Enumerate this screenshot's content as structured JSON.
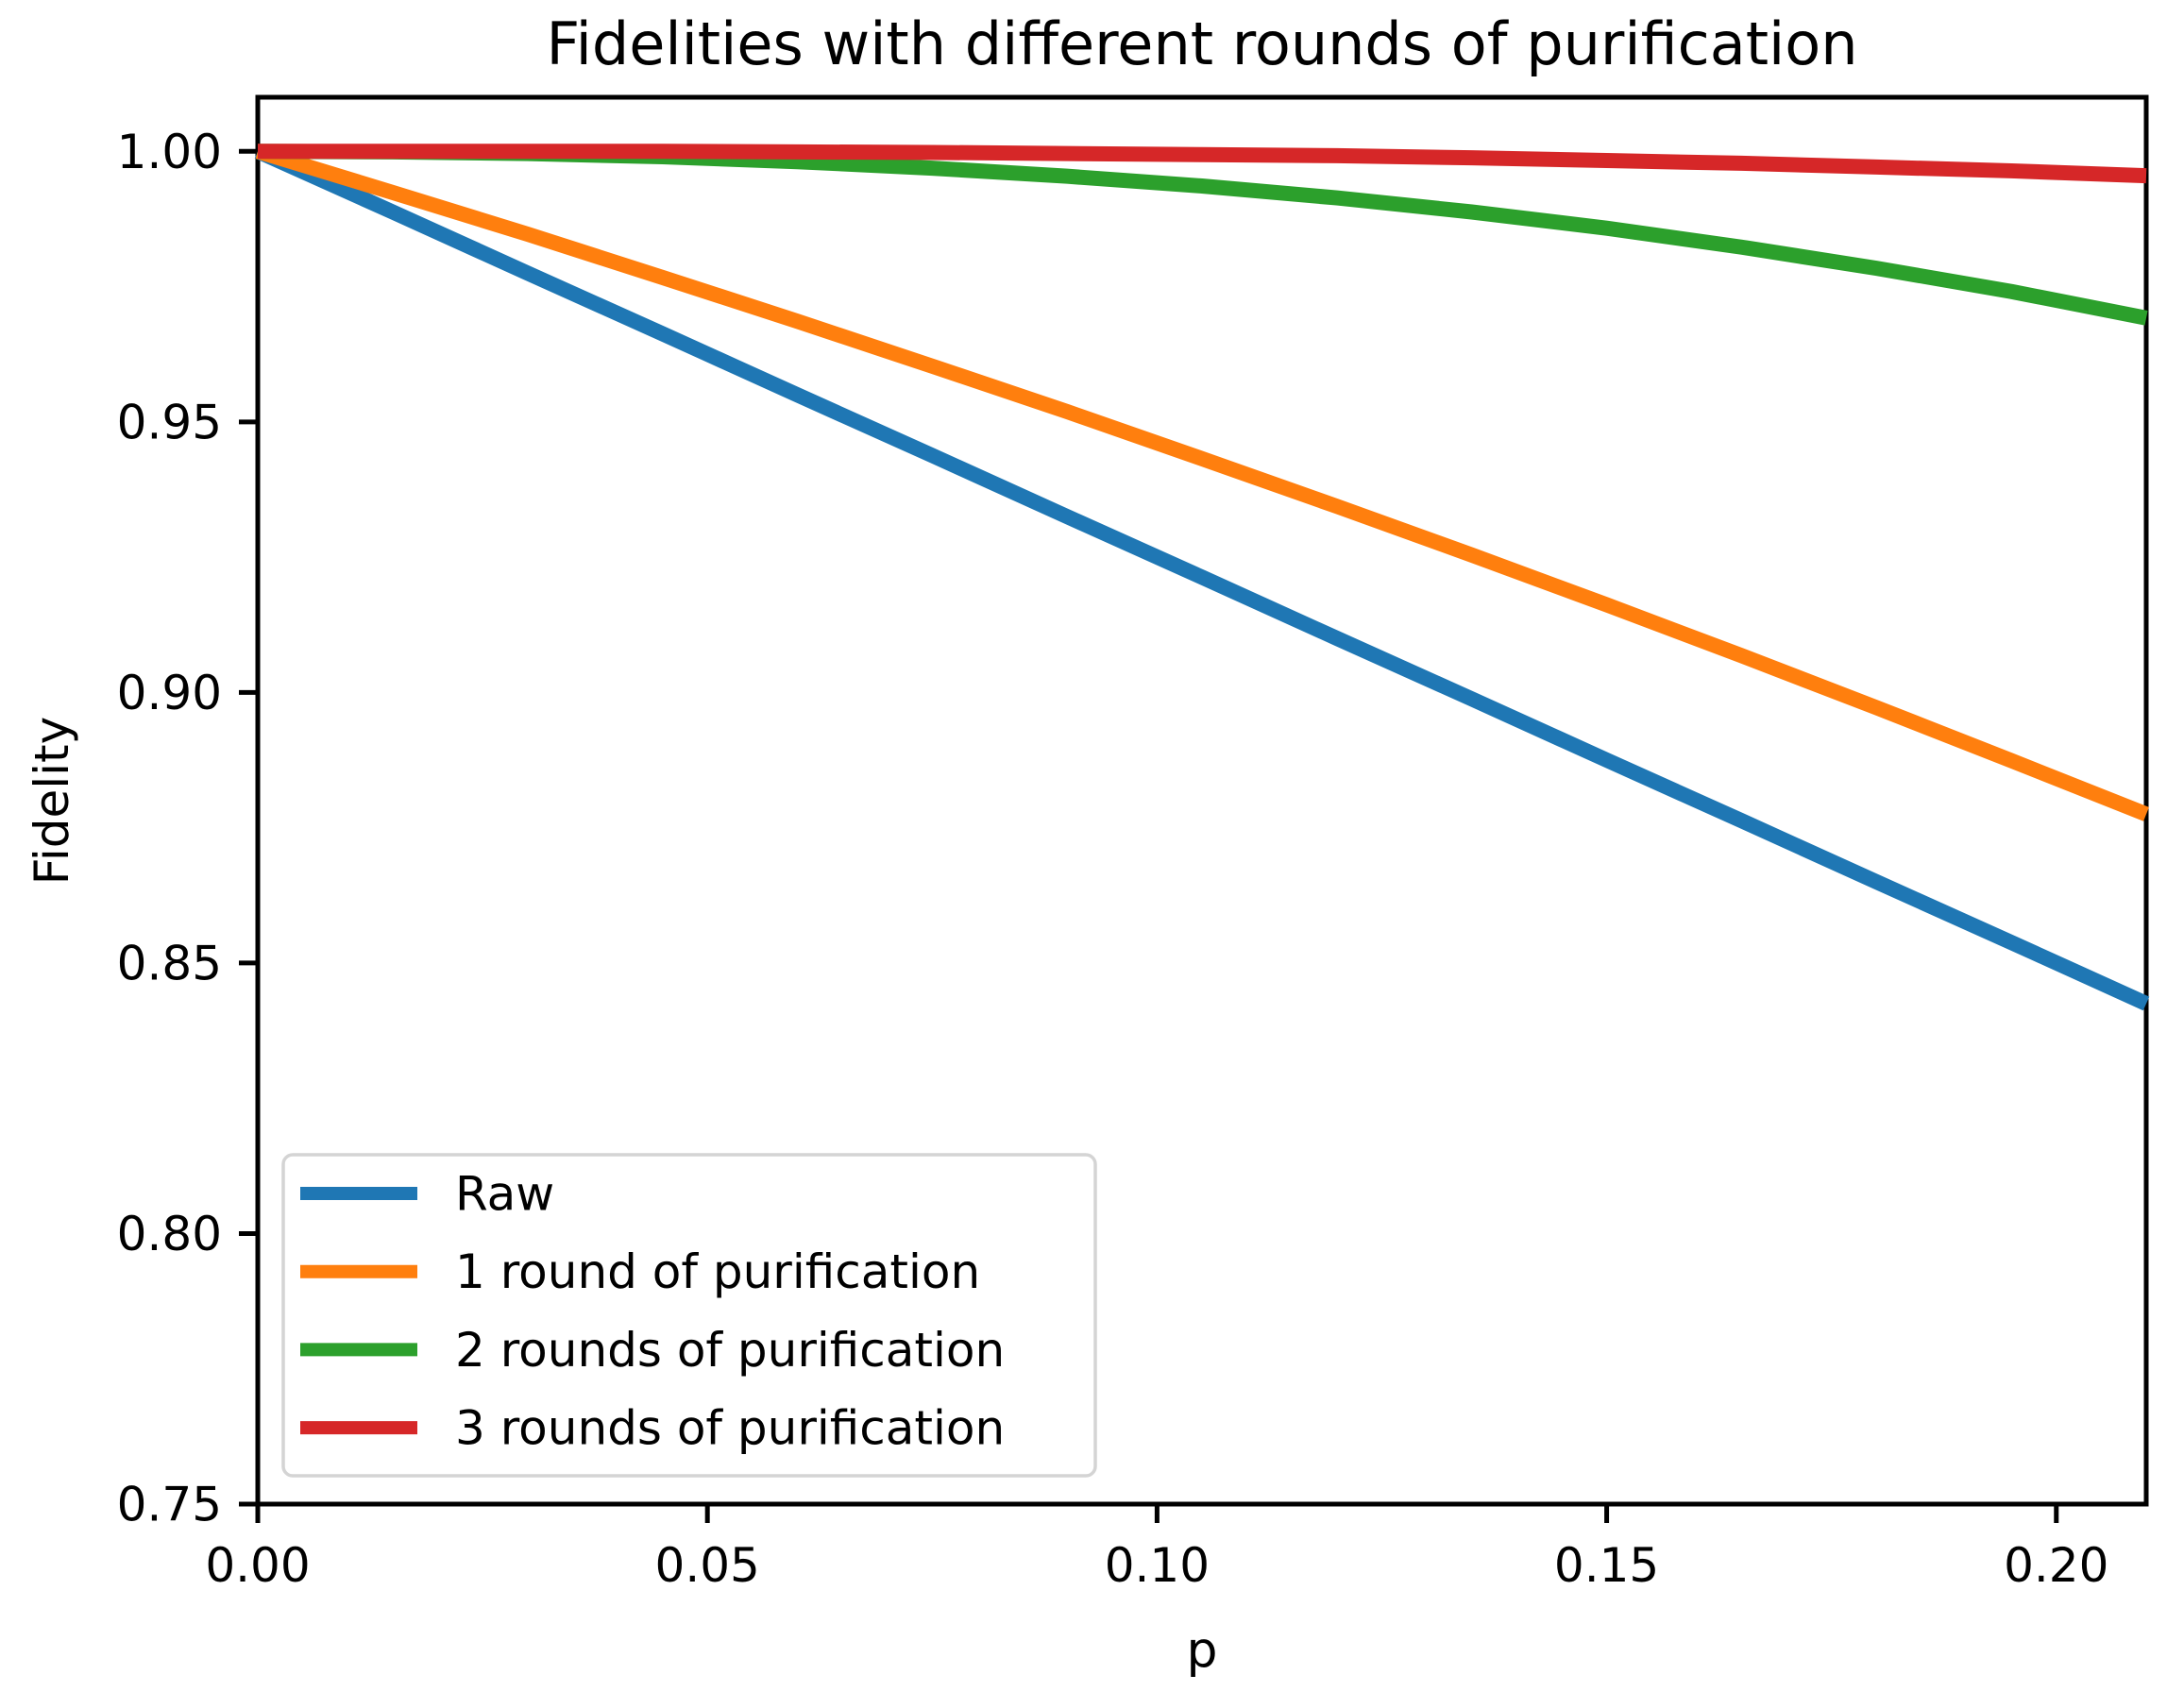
{
  "chart_data": {
    "type": "line",
    "title": "Fidelities with different rounds of purification",
    "xlabel": "p",
    "ylabel": "Fidelity",
    "xlim": [
      0.0,
      0.21
    ],
    "ylim": [
      0.75,
      1.01
    ],
    "xticks": [
      "0.00",
      "0.05",
      "0.10",
      "0.15",
      "0.20"
    ],
    "xtick_values": [
      0.0,
      0.05,
      0.1,
      0.15,
      0.2
    ],
    "yticks": [
      "0.75",
      "0.80",
      "0.85",
      "0.90",
      "0.95",
      "1.00"
    ],
    "ytick_values": [
      0.75,
      0.8,
      0.85,
      0.9,
      0.95,
      1.0
    ],
    "grid": false,
    "legend_position": "lower left",
    "legend_edge_color": "#d4d4d4",
    "x": [
      0.0,
      0.015,
      0.03,
      0.045,
      0.06,
      0.075,
      0.09,
      0.105,
      0.12,
      0.135,
      0.15,
      0.165,
      0.18,
      0.195,
      0.21
    ],
    "series": [
      {
        "name": "Raw",
        "color": "#1f77b4",
        "values": [
          1.0,
          0.9888,
          0.9775,
          0.9663,
          0.955,
          0.9438,
          0.9325,
          0.9213,
          0.91,
          0.8988,
          0.8875,
          0.8763,
          0.865,
          0.8538,
          0.8425
        ]
      },
      {
        "name": "1 round of purification",
        "color": "#ff7f0e",
        "values": [
          1.0,
          0.9924,
          0.9847,
          0.9767,
          0.9686,
          0.9603,
          0.9519,
          0.9432,
          0.9344,
          0.9254,
          0.9162,
          0.9068,
          0.8972,
          0.8874,
          0.8775
        ]
      },
      {
        "name": "2 rounds of purification",
        "color": "#2ca02c",
        "values": [
          1.0,
          0.9999,
          0.9996,
          0.999,
          0.9981,
          0.9969,
          0.9954,
          0.9936,
          0.9914,
          0.9888,
          0.9858,
          0.9823,
          0.9784,
          0.9741,
          0.9692
        ]
      },
      {
        "name": "3 rounds of purification",
        "color": "#d62728",
        "values": [
          1.0,
          1.0,
          1.0,
          1.0,
          0.9999,
          0.9998,
          0.9996,
          0.9994,
          0.9992,
          0.9988,
          0.9983,
          0.9978,
          0.9971,
          0.9964,
          0.9955
        ]
      }
    ]
  }
}
